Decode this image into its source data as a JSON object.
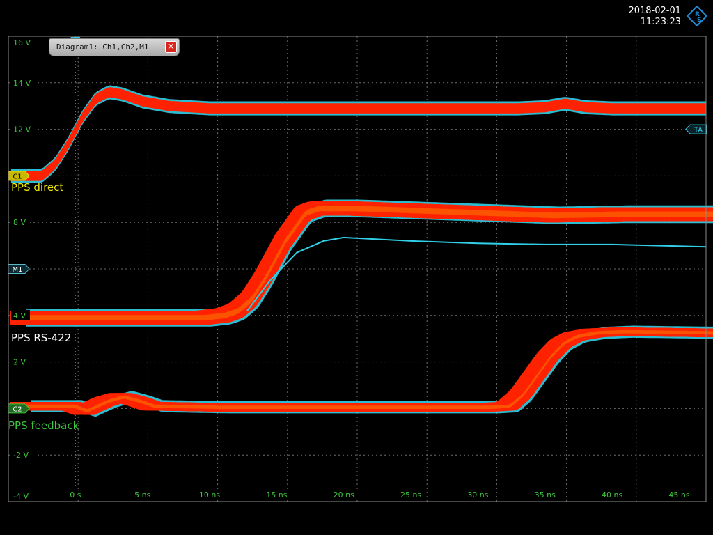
{
  "header": {
    "date": "2018-02-01",
    "time": "11:23:23",
    "logo_icon": "rohde-schwarz-logo",
    "logo_text": "RS"
  },
  "diagram_tab": {
    "label": "Diagram1: Ch1,Ch2,M1",
    "close_icon": "close-icon",
    "close_label": "✕",
    "close_color": "#d9261c"
  },
  "trace_labels": [
    {
      "text": "PPS direct",
      "color": "#f0e800"
    },
    {
      "text": "PPS RS-422",
      "color": "#ffffff"
    },
    {
      "text": "PPS feedback",
      "color": "#3ec43e"
    }
  ],
  "markers": {
    "c1": "C1",
    "m1": "M1",
    "c2": "C2",
    "ta": "TA"
  },
  "chart_data": {
    "type": "line",
    "title": "",
    "xlabel": "",
    "ylabel": "",
    "xlim": [
      -5,
      47
    ],
    "ylim": [
      -4,
      16
    ],
    "x_ticks": [
      "0 s",
      "5 ns",
      "10 ns",
      "15 ns",
      "20 ns",
      "25 ns",
      "30 ns",
      "35 ns",
      "40 ns",
      "45 ns"
    ],
    "y_ticks": [
      "16 V",
      "14 V",
      "12 V",
      "8 V",
      "4 V",
      "2 V",
      "-2 V",
      "-4 V"
    ],
    "grid": true,
    "colors": {
      "persistence": "#ff2200",
      "overlay": "#30d0e8",
      "hot": "#f0e800",
      "warm": "#3ec43e",
      "grid": "#6a6a6a",
      "tick_text": "#3ec43e"
    },
    "series": [
      {
        "name": "PPS direct",
        "x": [
          -4.8,
          -2.5,
          -1.5,
          -0.5,
          0.5,
          1.5,
          2.5,
          3.5,
          5,
          7,
          10,
          15,
          20,
          25,
          30,
          33,
          35,
          36.5,
          38,
          40,
          47
        ],
        "y": [
          10.0,
          10.0,
          10.5,
          11.4,
          12.5,
          13.3,
          13.6,
          13.5,
          13.2,
          13.0,
          12.9,
          12.9,
          12.9,
          12.9,
          12.9,
          12.9,
          12.95,
          13.1,
          12.95,
          12.9,
          12.9
        ],
        "band": 0.22
      },
      {
        "name": "PPS RS-422",
        "x": [
          -4.8,
          5,
          9,
          10.5,
          11.5,
          12.5,
          13.5,
          15,
          16.5,
          17.5,
          20,
          25,
          30,
          35,
          40,
          47
        ],
        "y": [
          3.9,
          3.9,
          3.9,
          4.0,
          4.2,
          4.7,
          5.6,
          7.2,
          8.4,
          8.6,
          8.6,
          8.5,
          8.4,
          8.3,
          8.35,
          8.35
        ],
        "band": 0.3,
        "spread": 2.2
      },
      {
        "name": "PPS RS-422 outlier",
        "x": [
          12.8,
          14.5,
          16.5,
          18.5,
          20,
          25,
          30,
          35,
          40,
          47
        ],
        "y": [
          4.2,
          5.5,
          6.7,
          7.2,
          7.35,
          7.2,
          7.1,
          7.05,
          7.05,
          6.95
        ]
      },
      {
        "name": "PPS feedback",
        "x": [
          -4.8,
          -1,
          0,
          1.5,
          2.7,
          4,
          5,
          10,
          20,
          30,
          31.5,
          32.5,
          33.5,
          34.5,
          35.5,
          36.5,
          38,
          40,
          47
        ],
        "y": [
          0.1,
          0.1,
          -0.1,
          0.3,
          0.5,
          0.3,
          0.1,
          0.05,
          0.05,
          0.05,
          0.1,
          0.6,
          1.4,
          2.2,
          2.8,
          3.1,
          3.25,
          3.3,
          3.25
        ],
        "band": 0.18,
        "spread": 3.0
      }
    ]
  }
}
